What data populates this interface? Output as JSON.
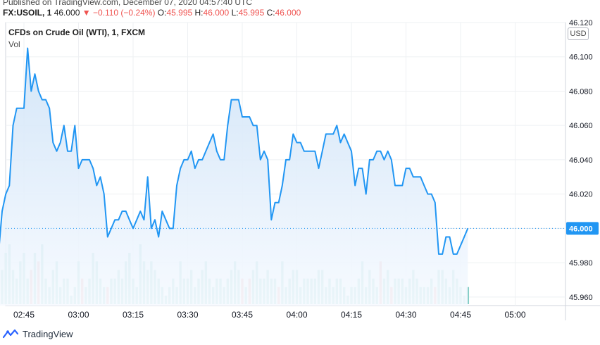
{
  "header": {
    "published": "Published on TradingView.com, December 07, 2020 04:57:40 UTC",
    "symbol": "FX:USOIL, 1",
    "last": "46.000",
    "change": "▼ −0.110 (−0.24%)",
    "open_label": "O:",
    "open": "45.995",
    "high_label": "H:",
    "high": "46.000",
    "low_label": "L:",
    "low": "45.995",
    "close_label": "C:",
    "close": "46.000"
  },
  "legend": {
    "title": "CFDs on Crude Oil (WTI), 1, FXCM",
    "vol": "Vol"
  },
  "currency": "USD",
  "last_price_label": "46.000",
  "footer": {
    "brand": "TradingView",
    "logo_icon": "tradingview-logo-icon"
  },
  "colors": {
    "line": "#2196f3",
    "area_top": "#cfe3f7",
    "area_bottom": "#f6faff",
    "vol_up": "#80cbc4",
    "vol_down": "#ef9a9a",
    "grid": "#eef0f3",
    "price_tag": "#2196f3"
  },
  "chart_data": {
    "type": "area",
    "title": "CFDs on Crude Oil (WTI), 1, FXCM",
    "xlabel": "",
    "ylabel": "",
    "x_ticks": [
      "02:45",
      "03:00",
      "03:15",
      "03:30",
      "03:45",
      "04:00",
      "04:15",
      "04:30",
      "04:45",
      "05:00"
    ],
    "y_ticks": [
      "45.960",
      "45.980",
      "46.000",
      "46.020",
      "46.040",
      "46.060",
      "46.080",
      "46.100",
      "46.120"
    ],
    "ylim": [
      45.955,
      46.12
    ],
    "grid": true,
    "legend": "top-left",
    "start_minute": 7,
    "series": [
      {
        "name": "CFDs on Crude Oil (WTI)",
        "values": [
          45.97,
          45.985,
          46.01,
          46.02,
          46.025,
          46.06,
          46.07,
          46.07,
          46.07,
          46.105,
          46.08,
          46.09,
          46.08,
          46.075,
          46.075,
          46.07,
          46.05,
          46.045,
          46.05,
          46.06,
          46.045,
          46.045,
          46.06,
          46.035,
          46.04,
          46.04,
          46.04,
          46.035,
          46.025,
          46.03,
          46.02,
          45.995,
          46.0,
          46.005,
          46.005,
          46.01,
          46.01,
          46.005,
          46.0,
          46.005,
          46.01,
          46.005,
          46.03,
          46.0,
          46.005,
          45.995,
          46.01,
          46.005,
          46.0,
          46.0,
          46.025,
          46.035,
          46.04,
          46.04,
          46.045,
          46.035,
          46.04,
          46.04,
          46.045,
          46.05,
          46.055,
          46.045,
          46.04,
          46.04,
          46.06,
          46.075,
          46.075,
          46.075,
          46.065,
          46.065,
          46.065,
          46.06,
          46.06,
          46.04,
          46.045,
          46.04,
          46.005,
          46.015,
          46.015,
          46.025,
          46.04,
          46.04,
          46.055,
          46.05,
          46.05,
          46.045,
          46.045,
          46.045,
          46.045,
          46.035,
          46.045,
          46.055,
          46.055,
          46.055,
          46.06,
          46.05,
          46.055,
          46.05,
          46.045,
          46.025,
          46.035,
          46.035,
          46.02,
          46.04,
          46.04,
          46.045,
          46.045,
          46.04,
          46.045,
          46.04,
          46.025,
          46.025,
          46.025,
          46.035,
          46.035,
          46.03,
          46.03,
          46.03,
          46.025,
          46.02,
          46.02,
          46.015,
          45.985,
          45.985,
          45.995,
          45.995,
          45.985,
          45.985,
          45.99,
          45.995,
          46.0
        ]
      }
    ],
    "volume": {
      "values": [
        3,
        6,
        4,
        6,
        7,
        4,
        3,
        5,
        6,
        3,
        4,
        6,
        5,
        7,
        3,
        2,
        4,
        5,
        2,
        3,
        3,
        1,
        2,
        5,
        3,
        2,
        3,
        6,
        5,
        3,
        2,
        2,
        3,
        3,
        4,
        3,
        5,
        6,
        3,
        2,
        7,
        5,
        4,
        5,
        4,
        3,
        2,
        1,
        2,
        3,
        2,
        5,
        3,
        3,
        4,
        2,
        3,
        4,
        5,
        3,
        2,
        3,
        3,
        2,
        3,
        4,
        5,
        4,
        3,
        2,
        3,
        4,
        5,
        3,
        3,
        4,
        3,
        3,
        2,
        5,
        2,
        3,
        4,
        4,
        2,
        3,
        3,
        3,
        3,
        4,
        4,
        2,
        3,
        2,
        3,
        3,
        2,
        1,
        2,
        2,
        3,
        5,
        2,
        4,
        3,
        2,
        5,
        3,
        4,
        2,
        3,
        3,
        3,
        2,
        3,
        4,
        3,
        2,
        2,
        2,
        3,
        2,
        4,
        4,
        3,
        2,
        4,
        3,
        2,
        1,
        2
      ],
      "up": [
        1,
        1,
        1,
        1,
        1,
        1,
        1,
        1,
        1,
        1,
        0,
        1,
        0,
        1,
        1,
        1,
        1,
        1,
        1,
        1,
        1,
        1,
        1,
        1,
        0,
        1,
        1,
        1,
        1,
        1,
        1,
        0,
        1,
        1,
        1,
        1,
        1,
        1,
        1,
        1,
        1,
        1,
        1,
        1,
        1,
        1,
        1,
        1,
        1,
        1,
        1,
        1,
        1,
        1,
        1,
        1,
        1,
        1,
        1,
        1,
        1,
        1,
        1,
        1,
        1,
        1,
        1,
        1,
        0,
        1,
        0,
        1,
        1,
        1,
        1,
        1,
        1,
        1,
        0,
        1,
        1,
        1,
        1,
        1,
        1,
        1,
        1,
        1,
        1,
        1,
        1,
        1,
        1,
        1,
        1,
        1,
        1,
        1,
        1,
        1,
        1,
        1,
        1,
        1,
        1,
        1,
        0,
        1,
        1,
        0,
        1,
        1,
        1,
        1,
        1,
        1,
        1,
        1,
        1,
        1,
        1,
        0,
        1,
        1,
        1,
        1,
        1,
        1,
        1,
        1,
        1
      ]
    },
    "last_value": 46.0
  }
}
